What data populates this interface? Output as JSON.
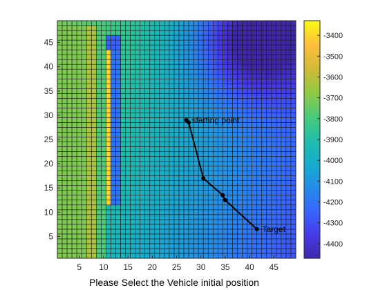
{
  "figure": {
    "background": "#ffffff"
  },
  "chart_data": {
    "type": "heatmap",
    "title": "",
    "xlabel": "Please Select the Vehicle initial position",
    "ylabel": "",
    "grid": true,
    "colormap": "parula",
    "x_range": [
      1,
      49
    ],
    "y_range": [
      1,
      49
    ],
    "x_ticks": [
      5,
      10,
      15,
      20,
      25,
      30,
      35,
      40,
      45
    ],
    "y_ticks": [
      5,
      10,
      15,
      20,
      25,
      30,
      35,
      40,
      45
    ],
    "colorbar": {
      "range": [
        -4470,
        -3330
      ],
      "ticks": [
        -3400,
        -3500,
        -3600,
        -3700,
        -3800,
        -3900,
        -4000,
        -4100,
        -4200,
        -4300,
        -4400
      ],
      "location": "right"
    },
    "field": {
      "base": -4000,
      "x_gradient": -9,
      "y_gradient": 3,
      "features": [
        {
          "kind": "band",
          "x_from": 1,
          "x_to": 7,
          "y_from": 1,
          "y_to": 49,
          "value": -3700
        },
        {
          "kind": "band",
          "x_from": 7,
          "x_to": 9,
          "y_from": 1,
          "y_to": 49,
          "value": -3620
        },
        {
          "kind": "band",
          "x_from": 9,
          "x_to": 11,
          "y_from": 1,
          "y_to": 49,
          "value": -3780
        },
        {
          "kind": "band",
          "x_from": 11,
          "x_to": 12,
          "y_from": 12,
          "y_to": 44,
          "value": -3400
        },
        {
          "kind": "band",
          "x_from": 12,
          "x_to": 14,
          "y_from": 12,
          "y_to": 47,
          "value": -4200
        },
        {
          "kind": "band",
          "x_from": 11,
          "x_to": 14,
          "y_from": 44,
          "y_to": 47,
          "value": -4250
        },
        {
          "kind": "well",
          "x": 41,
          "y": 46,
          "radius": 9,
          "depth": -470
        }
      ]
    },
    "series": [
      {
        "type": "line",
        "x": [
          27,
          27.5,
          30.5,
          34.5,
          35,
          41.5
        ],
        "y": [
          29,
          28.5,
          17,
          13.5,
          12.5,
          6.5
        ],
        "color": "#000000"
      }
    ],
    "annotations": [
      {
        "text": "starting point",
        "x": 27,
        "y": 29
      },
      {
        "text": "Target",
        "x": 41.5,
        "y": 6.5
      }
    ]
  }
}
